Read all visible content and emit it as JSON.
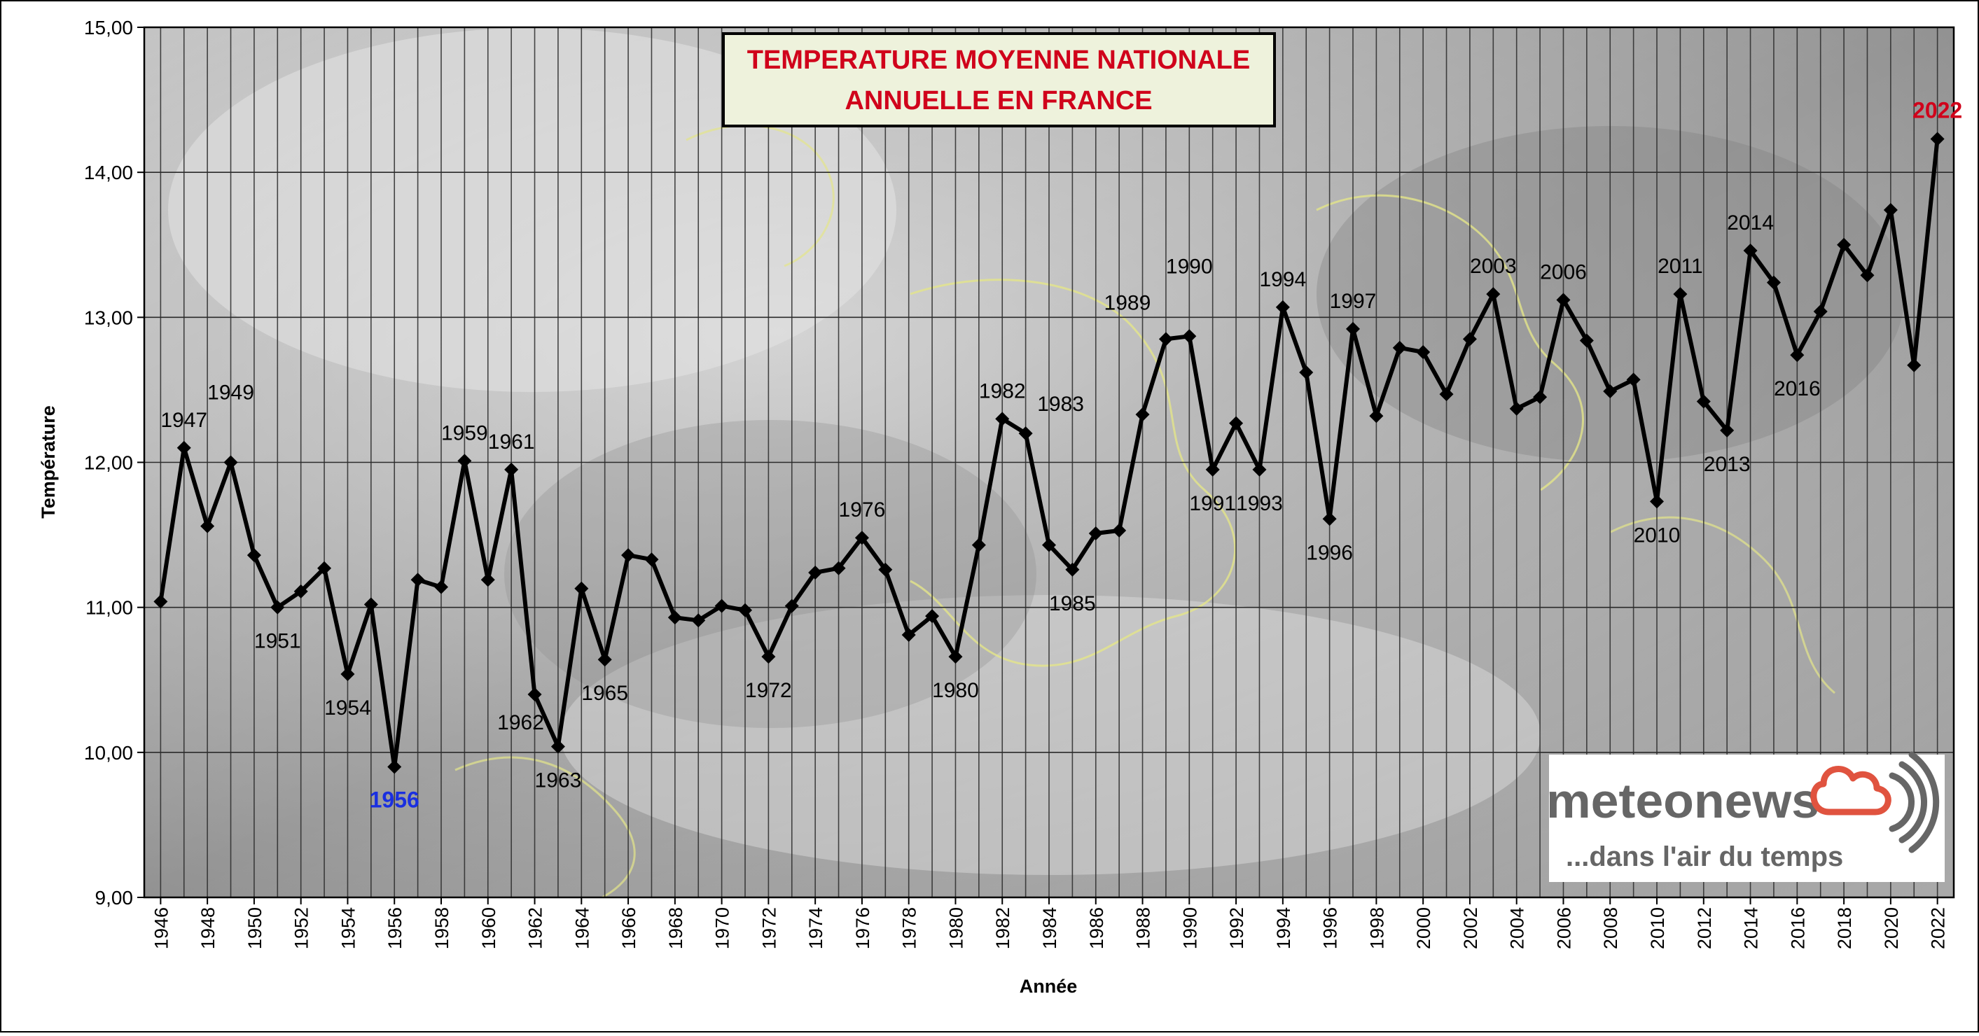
{
  "chart_data": {
    "type": "line",
    "title_line1": "TEMPERATURE MOYENNE NATIONALE",
    "title_line2": "ANNUELLE EN FRANCE",
    "xlabel": "Année",
    "ylabel": "Température",
    "ylim": [
      9,
      15
    ],
    "xlim": [
      1946,
      2022
    ],
    "yticks": [
      "9,00",
      "10,00",
      "11,00",
      "12,00",
      "13,00",
      "14,00",
      "15,00"
    ],
    "xticks": [
      "1946",
      "1948",
      "1950",
      "1952",
      "1954",
      "1956",
      "1958",
      "1960",
      "1962",
      "1964",
      "1966",
      "1968",
      "1970",
      "1972",
      "1974",
      "1976",
      "1978",
      "1980",
      "1982",
      "1984",
      "1986",
      "1988",
      "1990",
      "1992",
      "1994",
      "1996",
      "1998",
      "2000",
      "2002",
      "2004",
      "2006",
      "2008",
      "2010",
      "2012",
      "2014",
      "2016",
      "2018",
      "2020",
      "2022"
    ],
    "grid": true,
    "x": [
      1946,
      1947,
      1948,
      1949,
      1950,
      1951,
      1952,
      1953,
      1954,
      1955,
      1956,
      1957,
      1958,
      1959,
      1960,
      1961,
      1962,
      1963,
      1964,
      1965,
      1966,
      1967,
      1968,
      1969,
      1970,
      1971,
      1972,
      1973,
      1974,
      1975,
      1976,
      1977,
      1978,
      1979,
      1980,
      1981,
      1982,
      1983,
      1984,
      1985,
      1986,
      1987,
      1988,
      1989,
      1990,
      1991,
      1992,
      1993,
      1994,
      1995,
      1996,
      1997,
      1998,
      1999,
      2000,
      2001,
      2002,
      2003,
      2004,
      2005,
      2006,
      2007,
      2008,
      2009,
      2010,
      2011,
      2012,
      2013,
      2014,
      2015,
      2016,
      2017,
      2018,
      2019,
      2020,
      2021,
      2022
    ],
    "y": [
      11.04,
      12.1,
      11.56,
      12.0,
      11.36,
      11.0,
      11.11,
      11.27,
      10.54,
      11.02,
      9.9,
      11.19,
      11.14,
      12.01,
      11.19,
      11.95,
      10.4,
      10.04,
      11.13,
      10.64,
      11.36,
      11.33,
      10.93,
      10.91,
      11.01,
      10.98,
      10.66,
      11.01,
      11.24,
      11.27,
      11.48,
      11.26,
      10.81,
      10.94,
      10.66,
      11.43,
      12.3,
      12.2,
      11.43,
      11.26,
      11.51,
      11.53,
      12.33,
      12.85,
      12.87,
      11.95,
      12.27,
      11.95,
      13.07,
      12.62,
      11.61,
      12.92,
      12.32,
      12.79,
      12.76,
      12.47,
      12.85,
      13.16,
      12.37,
      12.45,
      13.12,
      12.84,
      12.49,
      12.57,
      11.73,
      13.16,
      12.42,
      12.22,
      13.46,
      13.24,
      12.74,
      13.04,
      13.5,
      13.29,
      13.74,
      12.67,
      14.23
    ],
    "annotations": [
      {
        "label": "1947",
        "x": 1947,
        "pos": "above",
        "color": "#000000"
      },
      {
        "label": "1949",
        "x": 1949,
        "pos": "above-high",
        "color": "#000000"
      },
      {
        "label": "1951",
        "x": 1951,
        "pos": "below",
        "color": "#000000"
      },
      {
        "label": "1954",
        "x": 1954,
        "pos": "below",
        "color": "#000000"
      },
      {
        "label": "1956",
        "x": 1956,
        "pos": "below",
        "color": "#1a2fe0"
      },
      {
        "label": "1959",
        "x": 1959,
        "pos": "above",
        "color": "#000000"
      },
      {
        "label": "1961",
        "x": 1961,
        "pos": "above",
        "color": "#000000"
      },
      {
        "label": "1962",
        "x": 1962,
        "pos": "below-left",
        "color": "#000000"
      },
      {
        "label": "1963",
        "x": 1963,
        "pos": "below",
        "color": "#000000"
      },
      {
        "label": "1965",
        "x": 1965,
        "pos": "below",
        "color": "#000000"
      },
      {
        "label": "1972",
        "x": 1972,
        "pos": "below",
        "color": "#000000"
      },
      {
        "label": "1976",
        "x": 1976,
        "pos": "above",
        "color": "#000000"
      },
      {
        "label": "1980",
        "x": 1980,
        "pos": "below",
        "color": "#000000"
      },
      {
        "label": "1982",
        "x": 1982,
        "pos": "above",
        "color": "#000000"
      },
      {
        "label": "1983",
        "x": 1983,
        "pos": "above-right",
        "color": "#000000"
      },
      {
        "label": "1985",
        "x": 1985,
        "pos": "below",
        "color": "#000000"
      },
      {
        "label": "1989",
        "x": 1989,
        "pos": "above-left",
        "color": "#000000"
      },
      {
        "label": "1990",
        "x": 1990,
        "pos": "above-high",
        "color": "#000000"
      },
      {
        "label": "1991",
        "x": 1991,
        "pos": "below",
        "color": "#000000"
      },
      {
        "label": "1993",
        "x": 1993,
        "pos": "below",
        "color": "#000000"
      },
      {
        "label": "1994",
        "x": 1994,
        "pos": "above",
        "color": "#000000"
      },
      {
        "label": "1996",
        "x": 1996,
        "pos": "below",
        "color": "#000000"
      },
      {
        "label": "1997",
        "x": 1997,
        "pos": "above",
        "color": "#000000"
      },
      {
        "label": "2003",
        "x": 2003,
        "pos": "above",
        "color": "#000000"
      },
      {
        "label": "2006",
        "x": 2006,
        "pos": "above",
        "color": "#000000"
      },
      {
        "label": "2010",
        "x": 2010,
        "pos": "below",
        "color": "#000000"
      },
      {
        "label": "2011",
        "x": 2011,
        "pos": "above",
        "color": "#000000"
      },
      {
        "label": "2013",
        "x": 2013,
        "pos": "below",
        "color": "#000000"
      },
      {
        "label": "2014",
        "x": 2014,
        "pos": "above",
        "color": "#000000"
      },
      {
        "label": "2016",
        "x": 2016,
        "pos": "below",
        "color": "#000000"
      },
      {
        "label": "2022",
        "x": 2022,
        "pos": "above",
        "color": "#d0021b"
      }
    ],
    "colors": {
      "line": "#000000",
      "title_text": "#d0021b",
      "title_box_bg": "#eef2dc",
      "grid": "#000000",
      "min_label": "#1a2fe0",
      "max_label": "#d0021b"
    }
  },
  "logo": {
    "brand": "meteonews",
    "tagline": "...dans l'air du temps",
    "colors": {
      "text": "#666666",
      "cloud": "#e0533f",
      "waves": "#666666"
    }
  }
}
